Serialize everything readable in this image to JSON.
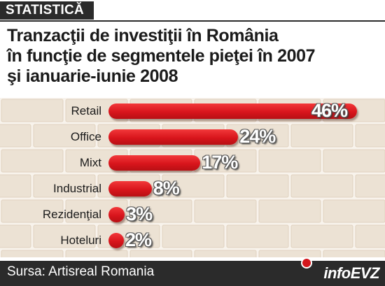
{
  "header": {
    "tag": "STATISTICĂ",
    "title_lines": [
      "Tranzacţii de investiţii în România",
      "în funcţie de segmentele pieţei în 2007",
      "şi ianuarie-iunie 2008"
    ]
  },
  "chart_data": {
    "type": "bar",
    "orientation": "horizontal",
    "title": "Tranzacţii de investiţii în România în funcţie de segmentele pieţei în 2007 şi ianuarie-iunie 2008",
    "categories": [
      "Retail",
      "Office",
      "Mixt",
      "Industrial",
      "Rezidenţial",
      "Hoteluri"
    ],
    "values": [
      46,
      24,
      17,
      8,
      3,
      2
    ],
    "value_labels": [
      "46%",
      "24%",
      "17%",
      "8%",
      "3%",
      "2%"
    ],
    "unit": "%",
    "xlabel": "",
    "ylabel": "",
    "bar_color": "#d8151c",
    "background": "brick wall"
  },
  "footer": {
    "source": "Sursa: Artisreal Romania",
    "logo": "infoEVZ"
  },
  "colors": {
    "brand_red": "#d8151c",
    "dark_band": "#2b2b2b"
  }
}
